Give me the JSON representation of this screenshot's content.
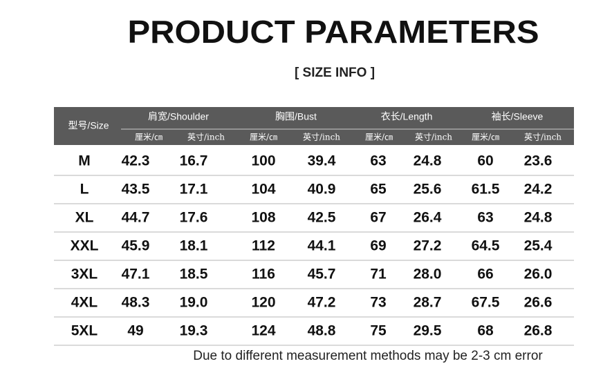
{
  "header": {
    "title": "PRODUCT PARAMETERS",
    "subtitle": "[ SIZE  INFO ]"
  },
  "table": {
    "size_header": "型号/Size",
    "groups": [
      {
        "label": "肩宽/Shoulder",
        "units": [
          "厘米/㎝",
          "英寸/inch"
        ]
      },
      {
        "label": "胸围/Bust",
        "units": [
          "厘米/㎝",
          "英寸/inch"
        ]
      },
      {
        "label": "衣长/Length",
        "units": [
          "厘米/㎝",
          "英寸/inch"
        ]
      },
      {
        "label": "袖长/Sleeve",
        "units": [
          "厘米/㎝",
          "英寸/inch"
        ]
      }
    ],
    "rows": [
      [
        "M",
        "42.3",
        "16.7",
        "100",
        "39.4",
        "63",
        "24.8",
        "60",
        "23.6"
      ],
      [
        "L",
        "43.5",
        "17.1",
        "104",
        "40.9",
        "65",
        "25.6",
        "61.5",
        "24.2"
      ],
      [
        "XL",
        "44.7",
        "17.6",
        "108",
        "42.5",
        "67",
        "26.4",
        "63",
        "24.8"
      ],
      [
        "XXL",
        "45.9",
        "18.1",
        "112",
        "44.1",
        "69",
        "27.2",
        "64.5",
        "25.4"
      ],
      [
        "3XL",
        "47.1",
        "18.5",
        "116",
        "45.7",
        "71",
        "28.0",
        "66",
        "26.0"
      ],
      [
        "4XL",
        "48.3",
        "19.0",
        "120",
        "47.2",
        "73",
        "28.7",
        "67.5",
        "26.6"
      ],
      [
        "5XL",
        "49",
        "19.3",
        "124",
        "48.8",
        "75",
        "29.5",
        "68",
        "26.8"
      ]
    ]
  },
  "note": "Due to different measurement methods may be 2-3 cm error"
}
